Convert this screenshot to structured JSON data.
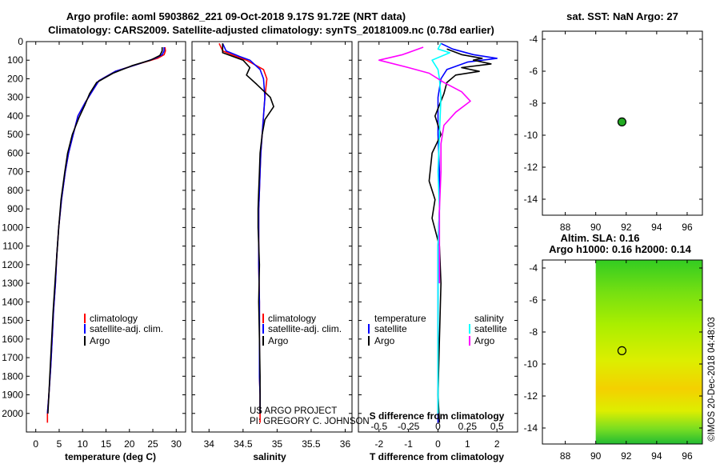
{
  "header": {
    "title_line1": "Argo profile: aoml 5903862_221 09-Oct-2018 9.17S 91.72E (NRT data)",
    "title_line2": "Climatology: CARS2009. Satellite-adjusted climatology: synTS_20181009.nc (0.78d earlier)"
  },
  "colors": {
    "climatology": "#ff0000",
    "satellite": "#0000ff",
    "argo": "#000000",
    "salinity_satellite": "#00ffff",
    "salinity_argo": "#ff00ff",
    "float_marker": "#22aa22"
  },
  "credits": {
    "project": "US ARGO PROJECT",
    "pi": "PI: GREGORY C. JOHNSON"
  },
  "timestamp": "©IMOS 20-Dec-2018 04:48:03",
  "chart_data": [
    {
      "id": "temperature",
      "type": "line",
      "xlabel": "temperature (deg C)",
      "ylabel": "",
      "xlim": [
        -2,
        32
      ],
      "ylim": [
        2100,
        0
      ],
      "xticks": [
        "0",
        "5",
        "10",
        "15",
        "20",
        "25",
        "30"
      ],
      "xtick_values": [
        0,
        5,
        10,
        15,
        20,
        25,
        30
      ],
      "yticks": [
        "0",
        "100",
        "200",
        "300",
        "400",
        "500",
        "600",
        "700",
        "800",
        "900",
        "1000",
        "1100",
        "1200",
        "1300",
        "1400",
        "1500",
        "1600",
        "1700",
        "1800",
        "1900",
        "2000"
      ],
      "ytick_values": [
        0,
        100,
        200,
        300,
        400,
        500,
        600,
        700,
        800,
        900,
        1000,
        1100,
        1200,
        1300,
        1400,
        1500,
        1600,
        1700,
        1800,
        1900,
        2000
      ],
      "legend": [
        "climatology",
        "satellite-adj. clim.",
        "Argo"
      ],
      "series": [
        {
          "name": "climatology",
          "color": "#ff0000",
          "x": [
            27.6,
            27.7,
            27.4,
            26,
            22,
            17,
            13.5,
            12,
            10.5,
            9,
            8,
            7,
            6.3,
            5.5,
            4.9,
            4.5,
            4.2,
            3.8,
            3.5,
            3.2,
            2.8,
            2.5,
            2.5
          ],
          "y": [
            30,
            50,
            70,
            90,
            120,
            160,
            210,
            270,
            330,
            400,
            500,
            600,
            700,
            850,
            1000,
            1150,
            1300,
            1450,
            1600,
            1750,
            1900,
            2000,
            2050
          ]
        },
        {
          "name": "satellite-adj. clim.",
          "color": "#0000ff",
          "x": [
            27.4,
            27.4,
            27,
            25.5,
            22,
            17,
            13.5,
            12,
            10.5,
            9,
            8,
            7,
            6.3,
            5.5,
            4.9,
            4.5,
            4.2,
            3.8,
            3.5,
            3.2,
            2.8,
            2.5
          ],
          "y": [
            30,
            50,
            70,
            90,
            120,
            160,
            210,
            270,
            330,
            400,
            500,
            600,
            700,
            850,
            1000,
            1150,
            1300,
            1450,
            1600,
            1750,
            1900,
            2000
          ]
        },
        {
          "name": "Argo",
          "color": "#000000",
          "x": [
            27.0,
            27.0,
            26.5,
            24.5,
            20.5,
            16.5,
            13.0,
            11.5,
            10.5,
            9.2,
            7.8,
            6.8,
            6.2,
            5.4,
            4.9,
            4.5,
            4.1,
            3.7,
            3.4,
            3.1,
            2.8,
            2.6
          ],
          "y": [
            30,
            50,
            75,
            100,
            130,
            170,
            220,
            280,
            340,
            410,
            500,
            600,
            700,
            850,
            1000,
            1150,
            1300,
            1450,
            1600,
            1750,
            1900,
            2000
          ]
        }
      ]
    },
    {
      "id": "salinity",
      "type": "line",
      "xlabel": "salinity",
      "xlim": [
        33.75,
        36.1
      ],
      "ylim": [
        2100,
        0
      ],
      "xticks": [
        "34",
        "34.5",
        "35",
        "35.5",
        "36"
      ],
      "xtick_values": [
        34,
        34.5,
        35,
        35.5,
        36
      ],
      "legend": [
        "climatology",
        "satellite-adj. clim.",
        "Argo"
      ],
      "series": [
        {
          "name": "climatology",
          "color": "#ff0000",
          "x": [
            34.15,
            34.2,
            34.4,
            34.55,
            34.8,
            34.85,
            34.82,
            34.8,
            34.78,
            34.76,
            34.75,
            34.74,
            34.73,
            34.73,
            34.73,
            34.74,
            34.74,
            34.74,
            34.75,
            34.75,
            34.75
          ],
          "y": [
            10,
            50,
            80,
            100,
            150,
            200,
            300,
            400,
            500,
            600,
            700,
            800,
            900,
            1000,
            1200,
            1400,
            1600,
            1800,
            1900,
            2000,
            2050
          ]
        },
        {
          "name": "satellite-adj. clim.",
          "color": "#0000ff",
          "x": [
            34.2,
            34.25,
            34.45,
            34.6,
            34.75,
            34.8,
            34.82,
            34.8,
            34.78,
            34.76,
            34.75,
            34.74,
            34.73,
            34.73,
            34.73,
            34.74,
            34.74,
            34.74,
            34.75,
            34.75
          ],
          "y": [
            10,
            50,
            80,
            100,
            150,
            200,
            300,
            400,
            500,
            600,
            700,
            800,
            900,
            1000,
            1200,
            1400,
            1600,
            1800,
            1900,
            2000
          ]
        },
        {
          "name": "Argo",
          "color": "#000000",
          "x": [
            34.2,
            34.2,
            34.5,
            34.6,
            34.55,
            34.7,
            34.9,
            34.95,
            34.82,
            34.78,
            34.75,
            34.74,
            34.73,
            34.72,
            34.72,
            34.74,
            34.73,
            34.74,
            34.75,
            34.75
          ],
          "y": [
            10,
            60,
            100,
            140,
            180,
            230,
            300,
            350,
            420,
            500,
            600,
            700,
            800,
            900,
            1000,
            1200,
            1400,
            1600,
            1800,
            2000
          ]
        }
      ]
    },
    {
      "id": "difference",
      "type": "line",
      "xlabel": "T difference from climatology",
      "xlabel2": "S difference from climatology",
      "xlim": [
        -2.7,
        2.7
      ],
      "ylim": [
        2100,
        0
      ],
      "xticks": [
        "-2",
        "-1",
        "0",
        "1",
        "2"
      ],
      "xtick_values": [
        -2,
        -1,
        0,
        1,
        2
      ],
      "xticks_s": [
        "-0.5",
        "-0.25",
        "0",
        "0.25",
        "0.5"
      ],
      "xtick_values_s": [
        -2,
        -1,
        0,
        1,
        2
      ],
      "legend_temperature_title": "temperature",
      "legend_salinity_title": "salinity",
      "legend_temperature": [
        "satellite",
        "Argo"
      ],
      "legend_salinity": [
        "satellite",
        "Argo"
      ],
      "series": [
        {
          "name": "T satellite",
          "color": "#0000ff",
          "x": [
            0.1,
            0.5,
            1.2,
            2.0,
            1.0,
            0.3,
            0.1,
            0,
            0,
            0,
            0.05,
            0.05,
            0,
            0,
            0,
            0,
            0,
            0,
            0
          ],
          "y": [
            10,
            40,
            70,
            90,
            110,
            150,
            200,
            300,
            400,
            500,
            700,
            900,
            1100,
            1300,
            1500,
            1700,
            1900,
            2000,
            2050
          ]
        },
        {
          "name": "T Argo",
          "color": "#000000",
          "x": [
            0.3,
            0.8,
            1.5,
            1.2,
            1.8,
            0.8,
            1.4,
            0.6,
            0.3,
            0.2,
            -0.1,
            0.1,
            -0.2,
            -0.3,
            -0.1,
            -0.2,
            0.05,
            0.1,
            0.05,
            0,
            0.05
          ],
          "y": [
            40,
            70,
            90,
            100,
            120,
            140,
            160,
            180,
            220,
            280,
            400,
            500,
            600,
            750,
            850,
            950,
            1100,
            1300,
            1600,
            1900,
            2050
          ]
        },
        {
          "name": "S satellite",
          "color": "#00ffff",
          "x": [
            0.1,
            0.0,
            0.4,
            -0.2,
            0,
            0.05,
            0.1,
            0.05,
            0,
            0.05,
            0,
            0,
            0,
            0,
            0
          ],
          "y": [
            10,
            40,
            60,
            100,
            150,
            200,
            300,
            500,
            700,
            900,
            1100,
            1300,
            1500,
            1800,
            2000
          ]
        },
        {
          "name": "S Argo",
          "color": "#ff00ff",
          "x": [
            -0.5,
            -1.2,
            -2.0,
            -1.0,
            -0.3,
            0.2,
            0.8,
            1.1,
            0.6,
            0.2,
            0.1,
            0.1,
            0.05,
            0.05,
            0.05
          ],
          "y": [
            30,
            70,
            100,
            140,
            170,
            220,
            270,
            320,
            380,
            450,
            550,
            700,
            900,
            1100,
            1300
          ]
        }
      ]
    },
    {
      "id": "sst_map",
      "type": "scatter",
      "title": "sat. SST: NaN Argo: 27",
      "xlim": [
        86.5,
        97
      ],
      "ylim": [
        -15,
        -3.5
      ],
      "xticks": [
        "88",
        "90",
        "92",
        "94",
        "96"
      ],
      "xtick_values": [
        88,
        90,
        92,
        94,
        96
      ],
      "yticks": [
        "-4",
        "-6",
        "-8",
        "-10",
        "-12",
        "-14"
      ],
      "ytick_values": [
        -4,
        -6,
        -8,
        -10,
        -12,
        -14
      ],
      "float": {
        "lon": 91.72,
        "lat": -9.17
      }
    },
    {
      "id": "sla_map",
      "type": "heatmap",
      "title": "Altim. SLA: 0.16",
      "subtitle": "Argo h1000: 0.16 h2000: 0.14",
      "xlim": [
        86.5,
        97
      ],
      "ylim": [
        -15,
        -3.5
      ],
      "xticks": [
        "88",
        "90",
        "92",
        "94",
        "96"
      ],
      "xtick_values": [
        88,
        90,
        92,
        94,
        96
      ],
      "yticks": [
        "-4",
        "-6",
        "-8",
        "-10",
        "-12",
        "-14"
      ],
      "ytick_values": [
        -4,
        -6,
        -8,
        -10,
        -12,
        -14
      ],
      "field_lon_min": 90,
      "float": {
        "lon": 91.72,
        "lat": -9.17
      }
    }
  ]
}
